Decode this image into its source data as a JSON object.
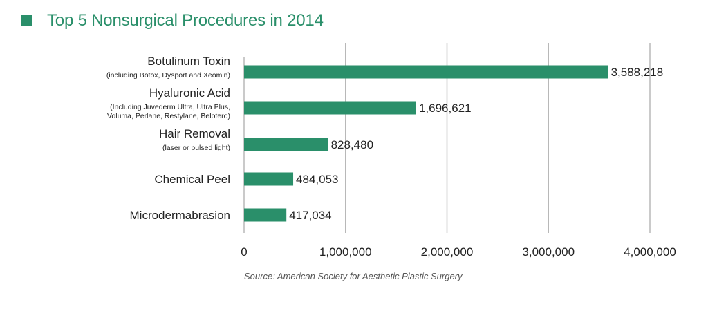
{
  "colors": {
    "bar": "#2a8f6a",
    "title": "#2a8f6a",
    "grid": "#b8b8b8",
    "text": "#222222"
  },
  "chart_data": {
    "type": "bar",
    "orientation": "horizontal",
    "title": "Top 5 Nonsurgical Procedures in 2014",
    "categories": [
      {
        "label": "Botulinum Toxin",
        "sublabel": [
          "(including Botox, Dysport and Xeomin)"
        ]
      },
      {
        "label": "Hyaluronic Acid",
        "sublabel": [
          "(Including Juvederm Ultra, Ultra Plus,",
          "Voluma, Perlane, Restylane, Belotero)"
        ]
      },
      {
        "label": "Hair Removal",
        "sublabel": [
          "(laser or pulsed light)"
        ]
      },
      {
        "label": "Chemical Peel",
        "sublabel": []
      },
      {
        "label": "Microdermabrasion",
        "sublabel": []
      }
    ],
    "values": [
      3588218,
      1696621,
      828480,
      484053,
      417034
    ],
    "data_labels": [
      "3,588,218",
      "1,696,621",
      "828,480",
      "484,053",
      "417,034"
    ],
    "xlim": [
      0,
      4000000
    ],
    "xticks": [
      0,
      1000000,
      2000000,
      3000000,
      4000000
    ],
    "xtick_labels": [
      "0",
      "1,000,000",
      "2,000,000",
      "3,000,000",
      "4,000,000"
    ],
    "grid": true,
    "source": "Source: American Society for Aesthetic Plastic Surgery"
  }
}
